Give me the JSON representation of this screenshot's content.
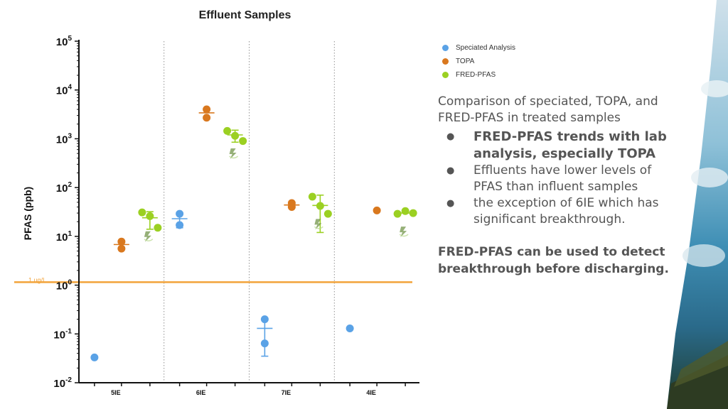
{
  "chart_data": {
    "type": "scatter",
    "title": "Effluent Samples",
    "ylabel": "PFAS (ppb)",
    "yscale": "log",
    "ylim": [
      0.01,
      100000
    ],
    "y_tick_labels": [
      {
        "base": "10",
        "exp": "-2"
      },
      {
        "base": "10",
        "exp": "-1"
      },
      {
        "base": "10",
        "exp": "0"
      },
      {
        "base": "10",
        "exp": "1"
      },
      {
        "base": "10",
        "exp": "2"
      },
      {
        "base": "10",
        "exp": "3"
      },
      {
        "base": "10",
        "exp": "4"
      },
      {
        "base": "10",
        "exp": "5"
      }
    ],
    "categories": [
      "5IE",
      "6IE",
      "7IE",
      "4IE"
    ],
    "reference_line": {
      "label": "1 ug/L",
      "value": 1.15,
      "color": "#f2a33a"
    },
    "series": [
      {
        "name": "Speciated Analysis",
        "color": "#5aa2e6",
        "points": [
          {
            "category": "5IE",
            "values": [
              0.033
            ],
            "mean": null,
            "err": null
          },
          {
            "category": "6IE",
            "values": [
              29,
              17
            ],
            "mean": 23,
            "err": [
              15,
              31
            ]
          },
          {
            "category": "7IE",
            "values": [
              0.2,
              0.064
            ],
            "mean": 0.13,
            "err": [
              0.035,
              0.2
            ]
          },
          {
            "category": "4IE",
            "values": [
              0.13
            ],
            "mean": null,
            "err": null
          }
        ]
      },
      {
        "name": "TOPA",
        "color": "#d9781e",
        "points": [
          {
            "category": "5IE",
            "values": [
              7.8,
              5.6
            ],
            "mean": 6.8,
            "err": null
          },
          {
            "category": "6IE",
            "values": [
              4000,
              2700
            ],
            "mean": 3400,
            "err": null
          },
          {
            "category": "7IE",
            "values": [
              40,
              48
            ],
            "mean": 44,
            "err": null
          },
          {
            "category": "4IE",
            "values": [
              34
            ],
            "mean": null,
            "err": null
          }
        ]
      },
      {
        "name": "FRED-PFAS",
        "color": "#9bd022",
        "points": [
          {
            "category": "5IE",
            "values": [
              31,
              26,
              15
            ],
            "mean": 24,
            "err": [
              14,
              32
            ]
          },
          {
            "category": "6IE",
            "values": [
              1450,
              1150,
              900
            ],
            "mean": 1200,
            "err": [
              850,
              1500
            ]
          },
          {
            "category": "7IE",
            "values": [
              65,
              42,
              29
            ],
            "mean": 43,
            "err": [
              12,
              70
            ]
          },
          {
            "category": "4IE",
            "values": [
              29,
              33,
              30
            ],
            "mean": 30,
            "err": null
          }
        ]
      }
    ]
  },
  "notes": {
    "intro": "Comparison of speciated, TOPA, and FRED-PFAS in treated samples",
    "bullets": [
      "FRED-PFAS trends with lab analysis, especially TOPA",
      "Effluents have lower levels of PFAS than influent samples",
      "the exception of 6IE which has significant breakthrough."
    ],
    "conclusion": "FRED-PFAS can be used to detect breakthrough before discharging."
  }
}
